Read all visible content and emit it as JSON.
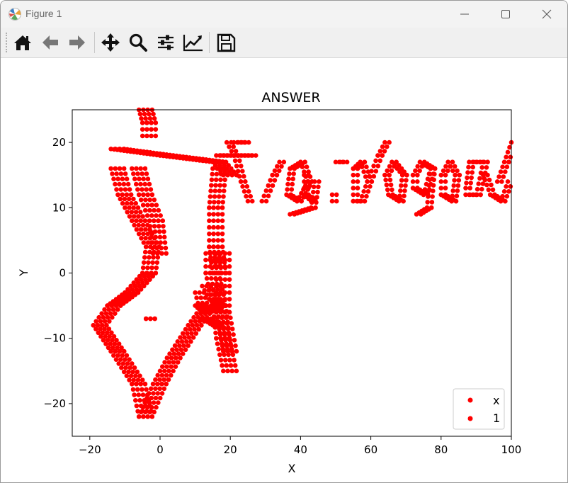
{
  "window": {
    "title": "Figure 1"
  },
  "toolbar": {
    "buttons": [
      "home-icon",
      "back-arrow-icon",
      "forward-arrow-icon",
      "pan-move-icon",
      "zoom-magnifier-icon",
      "configure-subplots-icon",
      "edit-axis-icon",
      "save-floppy-icon"
    ]
  },
  "figure": {
    "title": "ANSWER",
    "xlabel": "X",
    "ylabel": "Y"
  },
  "chart_data": {
    "type": "scatter",
    "title": "ANSWER",
    "xlabel": "X",
    "ylabel": "Y",
    "xlim": [
      -25,
      100
    ],
    "ylim": [
      -25,
      25
    ],
    "xticks": [
      -20,
      0,
      20,
      40,
      60,
      80,
      100
    ],
    "yticks": [
      -20,
      -10,
      0,
      10,
      20
    ],
    "xtick_labels": [
      "−20",
      "0",
      "20",
      "40",
      "60",
      "80",
      "100"
    ],
    "ytick_labels": [
      "−20",
      "−10",
      "0",
      "10",
      "20"
    ],
    "grid": false,
    "legend_position": "lower-right",
    "legend": [
      "x",
      "1"
    ],
    "marker_color": "#ff0000",
    "series": [
      {
        "name": "x",
        "segments": [
          [
            [
              -6,
              25
            ],
            [
              -5,
              23
            ],
            [
              -5,
              21
            ]
          ],
          [
            [
              -14,
              19
            ],
            [
              0,
              18
            ],
            [
              15,
              17
            ],
            [
              18,
              15
            ]
          ],
          [
            [
              -14,
              16
            ],
            [
              -12,
              12
            ],
            [
              -8,
              8
            ],
            [
              -4,
              4
            ],
            [
              -5,
              0
            ]
          ],
          [
            [
              -5,
              0
            ],
            [
              -10,
              -3
            ],
            [
              -15,
              -5
            ],
            [
              -19,
              -8
            ]
          ],
          [
            [
              -19,
              -8
            ],
            [
              -14,
              -12
            ],
            [
              -8,
              -17
            ],
            [
              -6,
              -22
            ]
          ],
          [
            [
              -6,
              -22
            ],
            [
              -2,
              -17
            ],
            [
              2,
              -13
            ],
            [
              8,
              -8
            ],
            [
              12,
              -5
            ]
          ],
          [
            [
              13,
              3
            ],
            [
              13,
              0
            ],
            [
              15,
              -5
            ],
            [
              16,
              -10
            ],
            [
              18,
              -15
            ]
          ],
          [
            [
              15,
              16
            ],
            [
              14,
              10
            ],
            [
              14,
              4
            ],
            [
              15,
              0
            ]
          ],
          [
            [
              -8,
              16
            ],
            [
              -6,
              12
            ],
            [
              -3,
              8
            ],
            [
              -2,
              3
            ]
          ],
          [
            [
              16,
              3
            ],
            [
              16,
              -6
            ],
            [
              18,
              -12
            ]
          ]
        ]
      },
      {
        "name": "1",
        "segments": [
          [
            [
              12,
              -2
            ],
            [
              14,
              -4
            ],
            [
              16,
              -5
            ],
            [
              12,
              -6
            ],
            [
              10,
              -5
            ]
          ],
          [
            [
              10,
              -3
            ],
            [
              12,
              -7
            ],
            [
              15,
              -8
            ]
          ],
          [
            [
              -4,
              -7
            ],
            [
              -4,
              -7
            ]
          ]
        ]
      }
    ],
    "text_overlay": "flag{dogod"
  },
  "text_dots": {
    "strokes": [
      [
        [
          19,
          20
        ],
        [
          21,
          18
        ],
        [
          23,
          14
        ],
        [
          25,
          11
        ]
      ],
      [
        [
          16,
          18
        ],
        [
          26,
          18
        ]
      ],
      [
        [
          21,
          20
        ],
        [
          24,
          20
        ]
      ],
      [
        [
          29,
          11
        ],
        [
          32,
          15
        ],
        [
          34,
          17
        ]
      ],
      [
        [
          36,
          12
        ],
        [
          37,
          16
        ],
        [
          40,
          17
        ],
        [
          42,
          14
        ],
        [
          39,
          11
        ],
        [
          36,
          12
        ]
      ],
      [
        [
          41,
          15
        ],
        [
          41,
          12
        ],
        [
          43,
          11
        ]
      ],
      [
        [
          44,
          14
        ],
        [
          43,
          10
        ],
        [
          37,
          9
        ]
      ],
      [
        [
          50,
          17
        ],
        [
          52,
          17
        ]
      ],
      [
        [
          49,
          12
        ],
        [
          49,
          11
        ]
      ],
      [
        [
          55,
          11
        ],
        [
          55,
          16
        ],
        [
          57,
          17
        ],
        [
          59,
          14
        ],
        [
          57,
          11
        ],
        [
          55,
          11
        ]
      ],
      [
        [
          59,
          14
        ],
        [
          62,
          18
        ],
        [
          64,
          20
        ]
      ],
      [
        [
          64,
          15
        ],
        [
          65,
          12
        ],
        [
          68,
          11
        ],
        [
          69,
          15
        ],
        [
          66,
          17
        ],
        [
          64,
          15
        ]
      ],
      [
        [
          72,
          15
        ],
        [
          74,
          17
        ],
        [
          77,
          16
        ],
        [
          75,
          12
        ],
        [
          72,
          13
        ],
        [
          72,
          15
        ]
      ],
      [
        [
          77,
          16
        ],
        [
          76,
          10
        ],
        [
          73,
          9
        ]
      ],
      [
        [
          80,
          15
        ],
        [
          82,
          17
        ],
        [
          84,
          15
        ],
        [
          83,
          11
        ],
        [
          80,
          12
        ],
        [
          80,
          15
        ]
      ],
      [
        [
          87,
          13
        ],
        [
          88,
          17
        ],
        [
          92,
          17
        ],
        [
          90,
          12
        ],
        [
          87,
          12
        ]
      ],
      [
        [
          92,
          15
        ],
        [
          94,
          12
        ],
        [
          97,
          11
        ]
      ],
      [
        [
          96,
          14
        ],
        [
          98,
          17
        ],
        [
          100,
          20
        ]
      ],
      [
        [
          97,
          11
        ],
        [
          99,
          14
        ]
      ]
    ]
  }
}
